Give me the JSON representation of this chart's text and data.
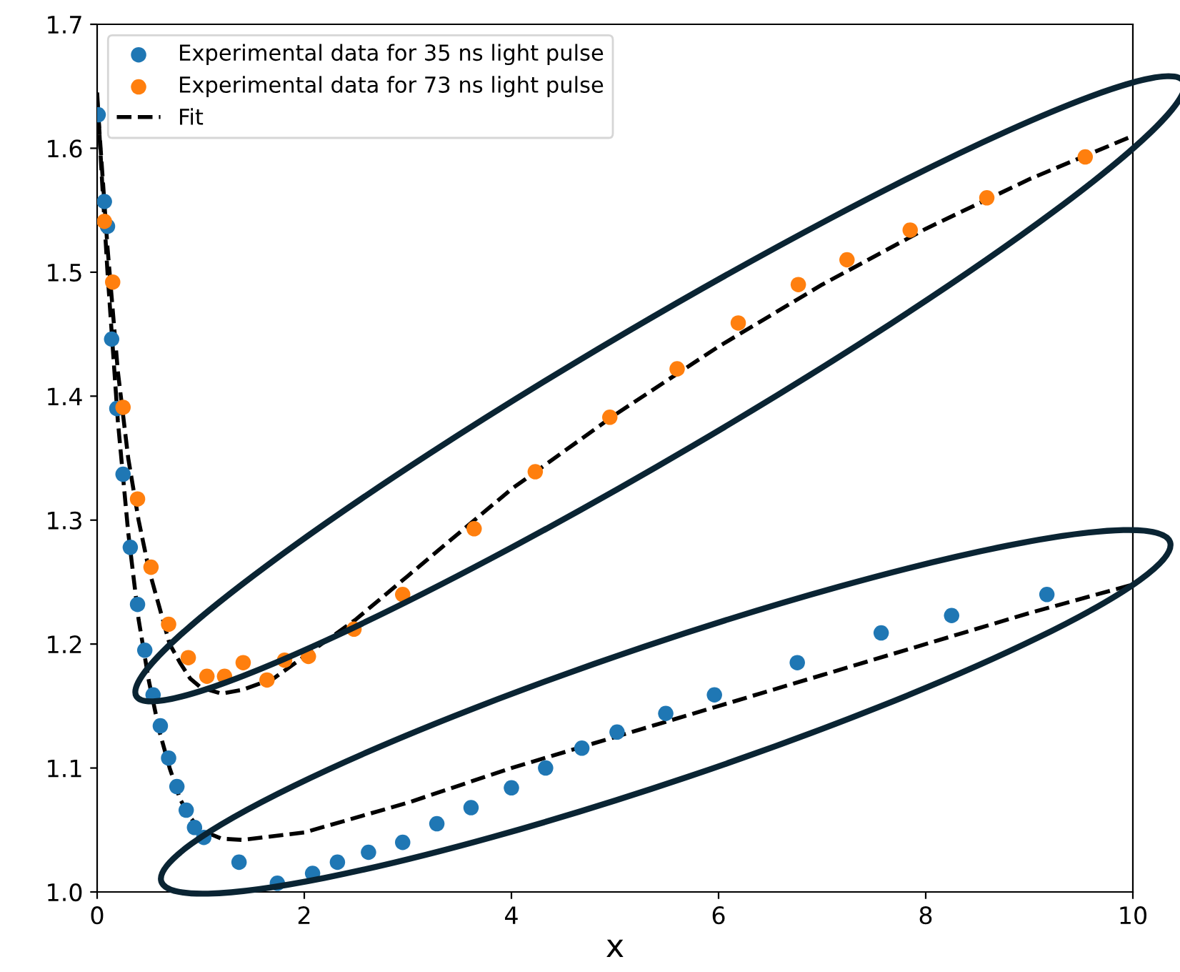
{
  "chart_data": {
    "type": "scatter",
    "xlabel": "x",
    "xlim": [
      0,
      10
    ],
    "ylim": [
      1.0,
      1.7
    ],
    "xticks": [
      0,
      2,
      4,
      6,
      8,
      10
    ],
    "yticks": [
      {
        "value": 1.0,
        "label": "1.0"
      },
      1.1,
      1.2,
      1.3,
      1.4,
      1.5,
      1.6,
      1.7
    ],
    "grid": false,
    "legend": "top left",
    "marker": "circle",
    "series": [
      {
        "name": "Experimental data for 35 ns light pulse",
        "color": "#1f77b4",
        "x": [
          0.01,
          0.07,
          0.1,
          0.14,
          0.19,
          0.25,
          0.32,
          0.39,
          0.46,
          0.54,
          0.61,
          0.69,
          0.77,
          0.86,
          0.94,
          1.03,
          1.37,
          1.74,
          2.08,
          2.32,
          2.62,
          2.95,
          3.28,
          3.61,
          4.0,
          4.33,
          4.68,
          5.02,
          5.49,
          5.96,
          6.76,
          7.57,
          8.25,
          9.17
        ],
        "values": [
          1.627,
          1.557,
          1.537,
          1.446,
          1.39,
          1.337,
          1.278,
          1.232,
          1.195,
          1.159,
          1.134,
          1.108,
          1.085,
          1.066,
          1.052,
          1.044,
          1.024,
          1.007,
          1.015,
          1.024,
          1.032,
          1.04,
          1.055,
          1.068,
          1.084,
          1.1,
          1.116,
          1.129,
          1.144,
          1.159,
          1.185,
          1.209,
          1.223,
          1.24
        ]
      },
      {
        "name": "Experimental data for 73 ns light pulse",
        "color": "#ff7f0e",
        "x": [
          0.07,
          0.15,
          0.25,
          0.39,
          0.52,
          0.69,
          0.88,
          1.06,
          1.23,
          1.41,
          1.64,
          1.81,
          2.04,
          2.48,
          2.95,
          3.64,
          4.23,
          4.95,
          5.6,
          6.19,
          6.77,
          7.24,
          7.85,
          8.59,
          9.54
        ],
        "values": [
          1.541,
          1.492,
          1.391,
          1.317,
          1.262,
          1.216,
          1.189,
          1.174,
          1.174,
          1.185,
          1.171,
          1.187,
          1.19,
          1.212,
          1.24,
          1.293,
          1.339,
          1.383,
          1.422,
          1.459,
          1.49,
          1.51,
          1.534,
          1.56,
          1.593
        ]
      },
      {
        "name": "Fit",
        "color": "#000000",
        "type": "line",
        "line_style": "dashed",
        "marker": "none",
        "x": [
          0,
          0.05,
          0.1,
          0.2,
          0.3,
          0.4,
          0.5,
          0.6,
          0.7,
          0.8,
          0.9,
          1.0,
          1.2,
          1.4,
          2,
          3,
          4,
          5,
          6,
          7,
          8,
          9,
          10
        ],
        "values": [
          1.645,
          1.57,
          1.5,
          1.38,
          1.29,
          1.22,
          1.17,
          1.13,
          1.1,
          1.075,
          1.06,
          1.05,
          1.043,
          1.042,
          1.048,
          1.072,
          1.1,
          1.125,
          1.15,
          1.175,
          1.2,
          1.225,
          1.248
        ]
      },
      {
        "color": "#000000",
        "type": "line",
        "line_style": "dashed",
        "marker": "none",
        "x": [
          0,
          0.1,
          0.2,
          0.3,
          0.4,
          0.5,
          0.6,
          0.7,
          0.8,
          0.9,
          1.0,
          1.2,
          1.4,
          1.7,
          2.0,
          2.5,
          3,
          3.5,
          4,
          5,
          6,
          7,
          8,
          9,
          10
        ],
        "values": [
          1.64,
          1.52,
          1.42,
          1.35,
          1.3,
          1.26,
          1.23,
          1.2,
          1.185,
          1.172,
          1.165,
          1.16,
          1.163,
          1.172,
          1.19,
          1.22,
          1.255,
          1.29,
          1.325,
          1.385,
          1.44,
          1.49,
          1.535,
          1.575,
          1.61
        ]
      }
    ]
  }
}
